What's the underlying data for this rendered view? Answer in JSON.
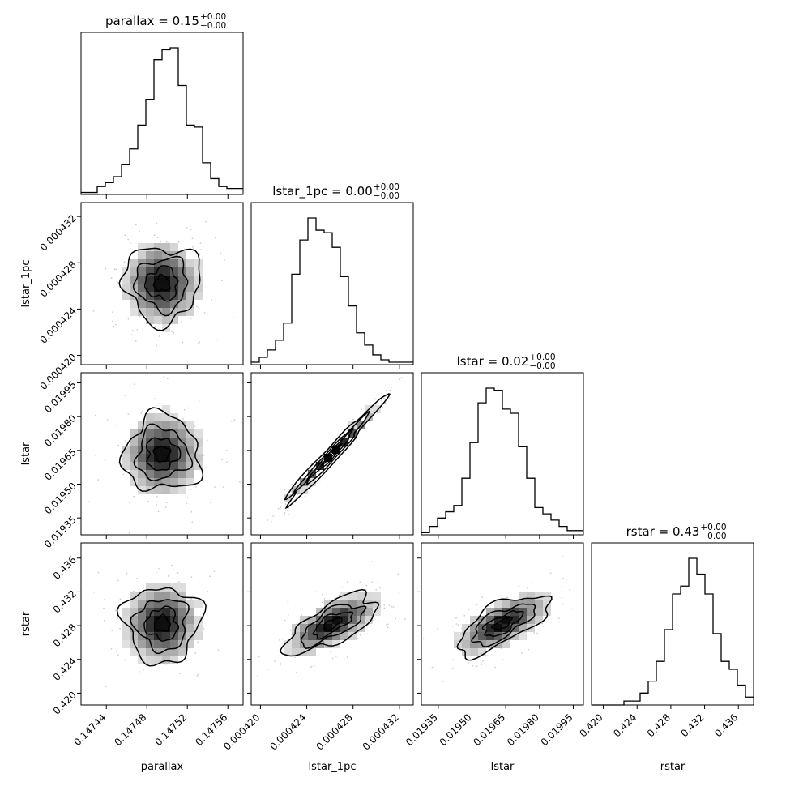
{
  "chart_data": {
    "type": "corner",
    "parameters": [
      "parallax",
      "lstar_1pc",
      "lstar",
      "rstar"
    ],
    "axis_labels": [
      "parallax",
      "lstar_1pc",
      "lstar",
      "rstar"
    ],
    "ranges": [
      [
        0.147415,
        0.147575
      ],
      [
        0.0004192,
        0.0004332
      ],
      [
        0.019275,
        0.019995
      ],
      [
        0.4186,
        0.4378
      ]
    ],
    "ticks": [
      {
        "values": [
          0.14744,
          0.14748,
          0.14752,
          0.14756
        ],
        "labels": [
          "0.14744",
          "0.14748",
          "0.14752",
          "0.14756"
        ]
      },
      {
        "values": [
          0.00042,
          0.000424,
          0.000428,
          0.000432
        ],
        "labels": [
          "0.000420",
          "0.000424",
          "0.000428",
          "0.000432"
        ]
      },
      {
        "values": [
          0.01935,
          0.0195,
          0.01965,
          0.0198,
          0.01995
        ],
        "labels": [
          "0.01935",
          "0.01950",
          "0.01965",
          "0.01980",
          "0.01995"
        ]
      },
      {
        "values": [
          0.42,
          0.424,
          0.428,
          0.432,
          0.436
        ],
        "labels": [
          "0.420",
          "0.424",
          "0.428",
          "0.432",
          "0.436"
        ]
      }
    ],
    "titles": [
      {
        "main": "parallax = 0.15",
        "sup": "+0.00",
        "sub": "−0.00"
      },
      {
        "main": "lstar_1pc = 0.00",
        "sup": "+0.00",
        "sub": "−0.00"
      },
      {
        "main": "lstar = 0.02",
        "sup": "+0.00",
        "sub": "−0.00"
      },
      {
        "main": "rstar = 0.43",
        "sup": "+0.00",
        "sub": "−0.00"
      }
    ],
    "histograms": [
      [
        1,
        1,
        4,
        6,
        9,
        15,
        23,
        35,
        48,
        68,
        73,
        74,
        55,
        35,
        34,
        16,
        8,
        4,
        3,
        3
      ],
      [
        1,
        3,
        6,
        10,
        17,
        37,
        51,
        60,
        55,
        54,
        48,
        36,
        24,
        13,
        8,
        4,
        2,
        1,
        1,
        1
      ],
      [
        1,
        4,
        8,
        11,
        14,
        27,
        44,
        63,
        70,
        69,
        60,
        58,
        42,
        27,
        13,
        10,
        7,
        4,
        2,
        2
      ],
      [
        0,
        0,
        0,
        0,
        1,
        1,
        3,
        6,
        11,
        19,
        28,
        30,
        37,
        33,
        28,
        18,
        11,
        9,
        5,
        2
      ]
    ],
    "correlations": [
      [
        1.0,
        0.0,
        0.0,
        -0.1
      ],
      [
        0.0,
        1.0,
        0.99,
        0.6
      ],
      [
        0.0,
        0.99,
        1.0,
        0.6
      ],
      [
        -0.1,
        0.6,
        0.6,
        1.0
      ]
    ]
  }
}
